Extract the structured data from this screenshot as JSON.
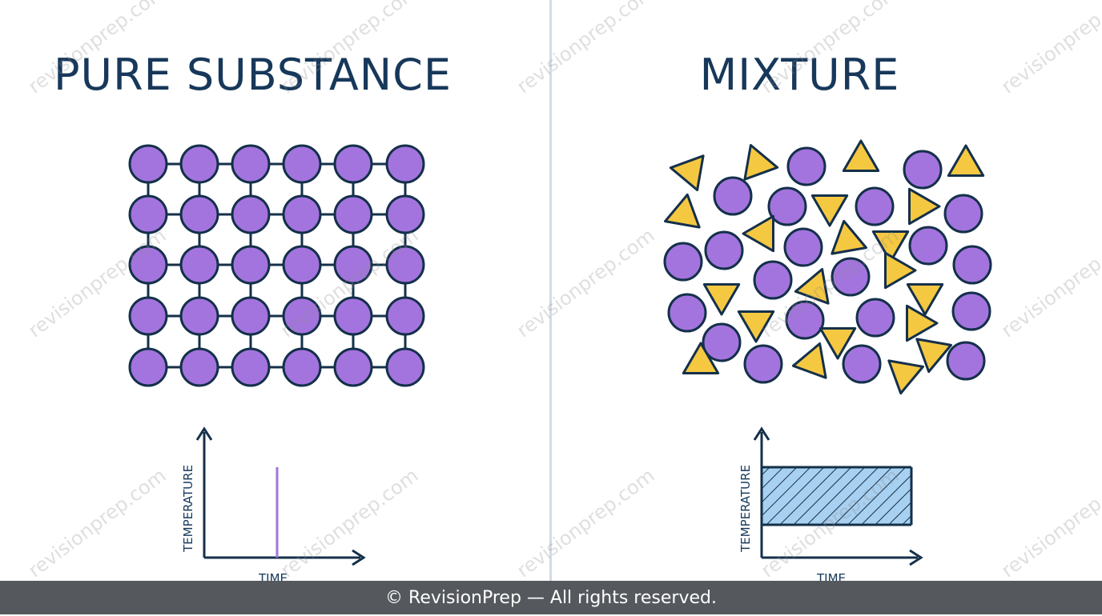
{
  "left_panel": {
    "title": "PURE SUBSTANCE",
    "graph": {
      "y_label": "TEMPERATURE",
      "x_label": "TIME"
    }
  },
  "right_panel": {
    "title": "MIXTURE",
    "graph": {
      "y_label": "TEMPERATURE",
      "x_label": "TIME"
    }
  },
  "colors": {
    "title": "#17385a",
    "particle_purple": "#a374de",
    "particle_yellow": "#f5c842",
    "outline": "#14304a",
    "band_fill": "#a8d0f0",
    "footer_bg": "#55595e"
  },
  "watermark": "revisionprep.com",
  "footer": {
    "text": "© RevisionPrep — All rights reserved."
  }
}
